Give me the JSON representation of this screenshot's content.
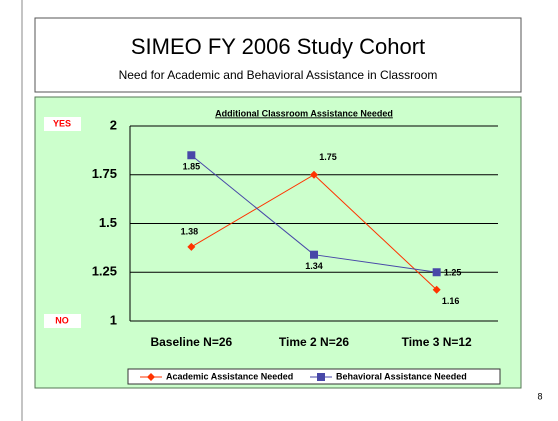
{
  "title": "SIMEO FY 2006 Study Cohort",
  "subtitle": "Need for Academic and Behavioral Assistance in Classroom",
  "page_number": "8",
  "chart_data": {
    "type": "line",
    "title": "Additional Classroom Assistance Needed",
    "annotations": [
      "YES",
      "NO"
    ],
    "categories": [
      "Baseline N=26",
      "Time 2 N=26",
      "Time 3 N=12"
    ],
    "series": [
      {
        "name": "Academic Assistance Needed",
        "color": "#ff3300",
        "marker": "diamond",
        "values": [
          1.38,
          1.75,
          1.16
        ]
      },
      {
        "name": "Behavioral Assistance Needed",
        "color": "#4848a8",
        "marker": "square",
        "values": [
          1.85,
          1.34,
          1.25
        ]
      }
    ],
    "ylim": [
      1,
      2
    ],
    "yticks": [
      1,
      1.25,
      1.5,
      1.75,
      2
    ],
    "grid": true,
    "legend": "bottom"
  }
}
